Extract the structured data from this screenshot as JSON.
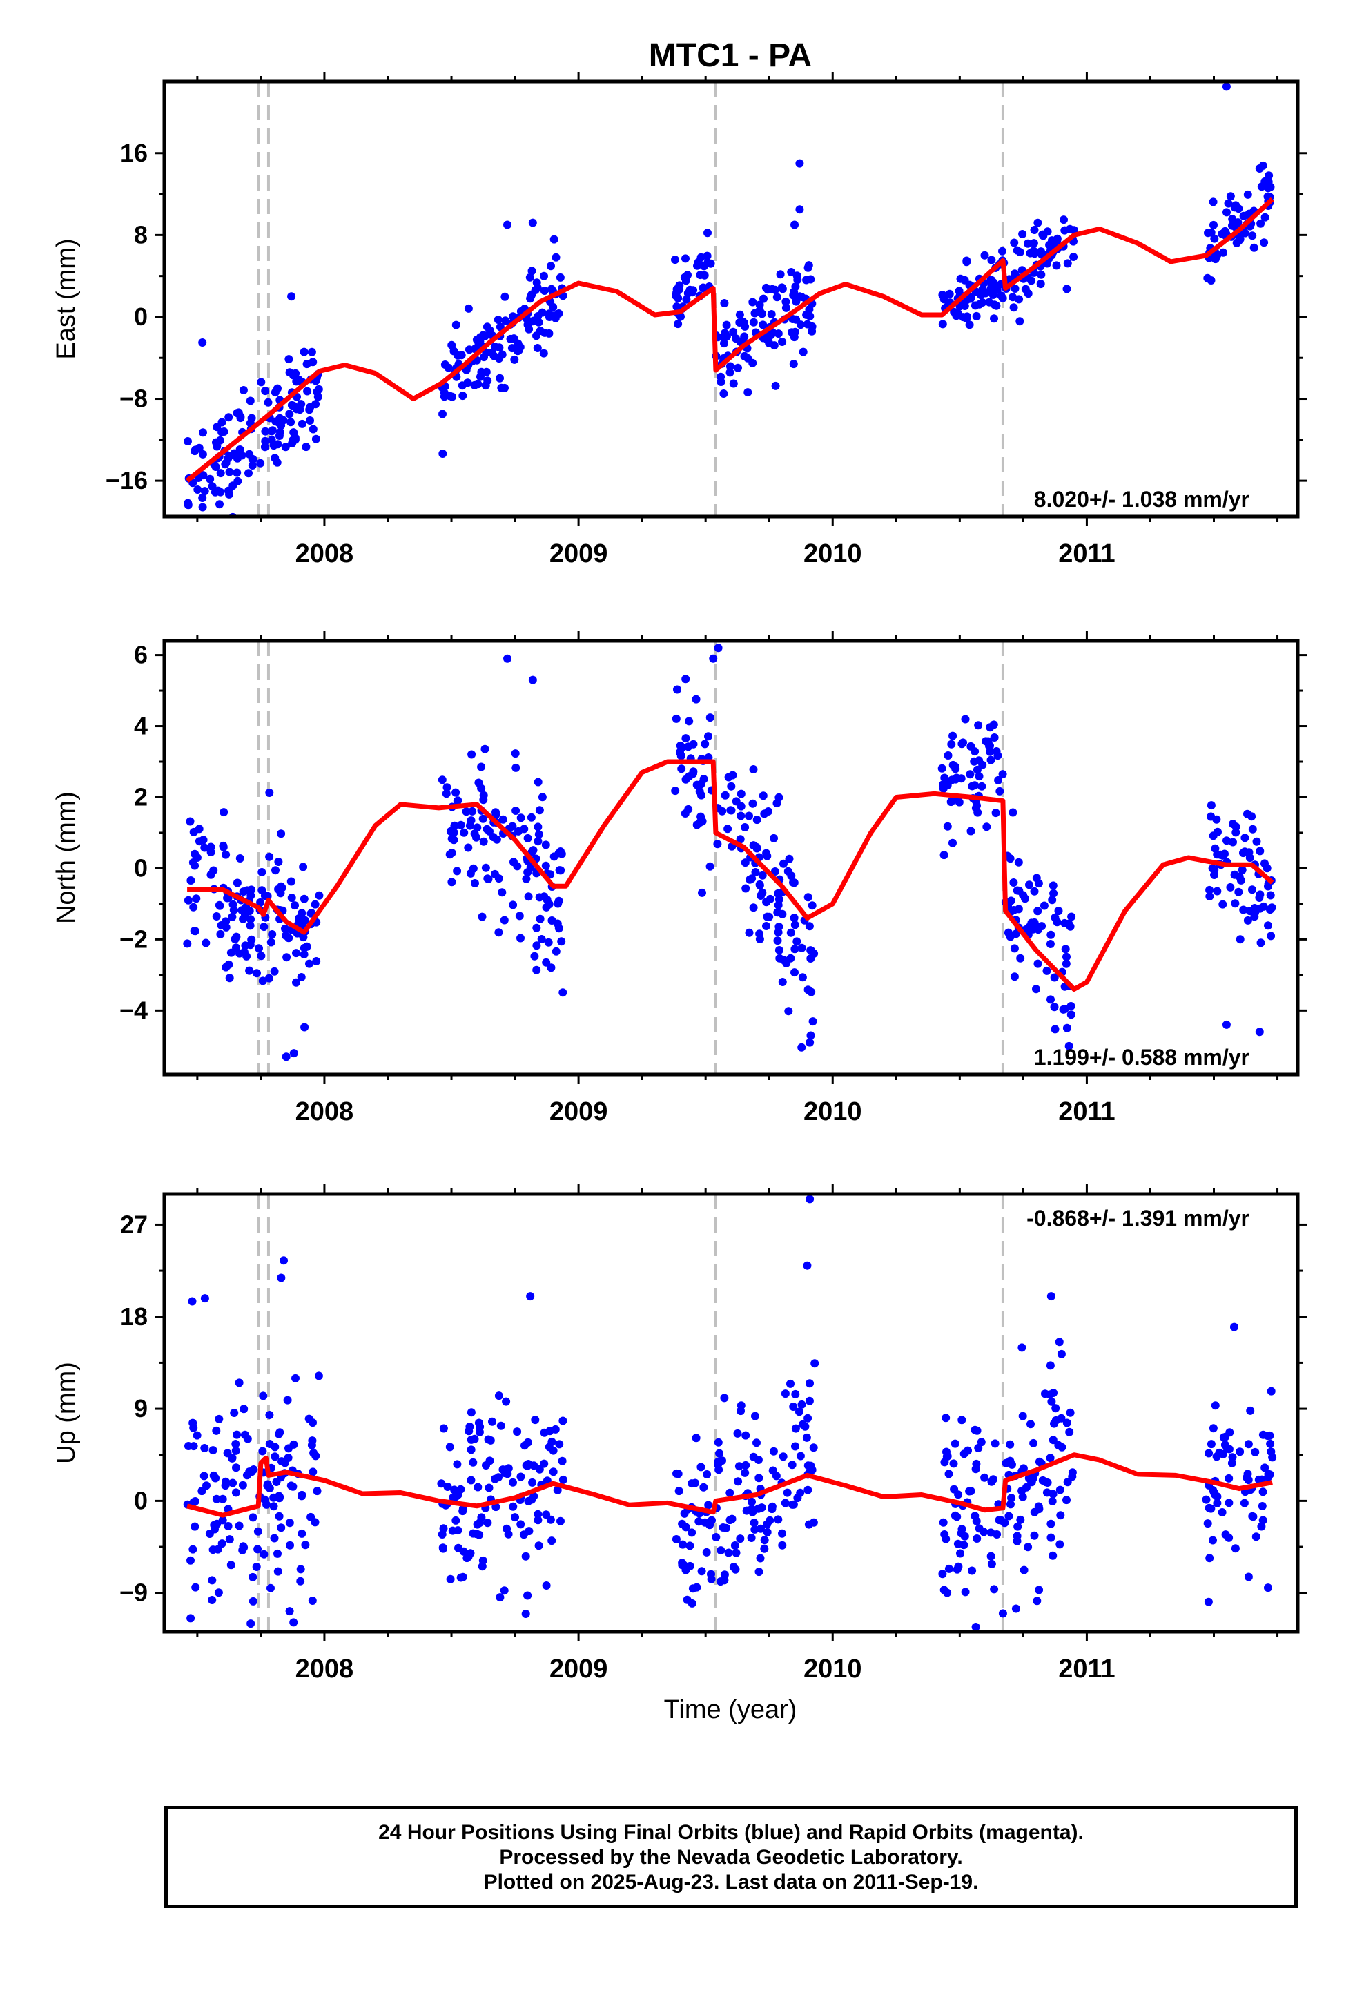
{
  "title": "MTC1 - PA",
  "footer": {
    "line1": "24 Hour Positions Using Final Orbits (blue) and Rapid Orbits (magenta).",
    "line2": "Processed by the Nevada Geodetic Laboratory.",
    "line3": "Plotted on 2025-Aug-23. Last data on 2011-Sep-19."
  },
  "colors": {
    "points": "#0000ff",
    "model": "#ff0000",
    "breaks": "#c0c0c0",
    "axes": "#000000"
  },
  "xaxis": {
    "label": "Time (year)",
    "range": [
      2007.37,
      2011.83
    ],
    "ticks": [
      2008,
      2009,
      2010,
      2011
    ]
  },
  "breaks": [
    2007.74,
    2007.78,
    2009.54,
    2010.67
  ],
  "chart_data": [
    {
      "type": "scatter",
      "name": "east",
      "ylabel": "East (mm)",
      "ylim": [
        -19.5,
        23
      ],
      "yticks": [
        16,
        8,
        0,
        -8,
        -16
      ],
      "ytick_labels": [
        "16",
        "8",
        "0",
        "−8",
        "−16"
      ],
      "rate": "8.020+/- 1.038 mm/yr",
      "rate_position": "bottom-right",
      "data_segments": [
        [
          2007.46,
          2007.98,
          -17.5,
          -6.0,
          2.5
        ],
        [
          2008.46,
          2008.94,
          -6.5,
          2.5,
          2.0
        ],
        [
          2009.38,
          2009.53,
          1.5,
          4.5,
          1.5
        ],
        [
          2009.54,
          2009.93,
          -4.0,
          2.0,
          2.2
        ],
        [
          2010.43,
          2010.95,
          0.0,
          7.5,
          1.7
        ],
        [
          2011.47,
          2011.73,
          6.0,
          12.0,
          1.5
        ]
      ],
      "outliers": [
        [
          2007.52,
          -2.5
        ],
        [
          2007.87,
          2.0
        ],
        [
          2008.72,
          9.0
        ],
        [
          2008.82,
          9.2
        ],
        [
          2009.87,
          15.0
        ],
        [
          2009.87,
          10.5
        ],
        [
          2009.85,
          9.0
        ],
        [
          2011.55,
          22.5
        ],
        [
          2011.68,
          14.5
        ]
      ],
      "model": [
        [
          2007.46,
          -16.0
        ],
        [
          2007.74,
          -10.4
        ],
        [
          2007.78,
          -9.6
        ],
        [
          2007.98,
          -5.3
        ],
        [
          2008.08,
          -4.7
        ],
        [
          2008.2,
          -5.5
        ],
        [
          2008.35,
          -8.0
        ],
        [
          2008.46,
          -6.5
        ],
        [
          2008.55,
          -4.7
        ],
        [
          2008.65,
          -2.5
        ],
        [
          2008.75,
          -0.5
        ],
        [
          2008.85,
          1.5
        ],
        [
          2009.0,
          3.3
        ],
        [
          2009.15,
          2.5
        ],
        [
          2009.3,
          0.2
        ],
        [
          2009.4,
          0.5
        ],
        [
          2009.53,
          2.8
        ],
        [
          2009.54,
          -5.2
        ],
        [
          2009.65,
          -2.8
        ],
        [
          2009.8,
          -0.3
        ],
        [
          2009.95,
          2.3
        ],
        [
          2010.05,
          3.2
        ],
        [
          2010.2,
          2.0
        ],
        [
          2010.35,
          0.2
        ],
        [
          2010.43,
          0.2
        ],
        [
          2010.55,
          2.8
        ],
        [
          2010.67,
          5.5
        ],
        [
          2010.68,
          2.8
        ],
        [
          2010.8,
          5.0
        ],
        [
          2010.95,
          8.0
        ],
        [
          2011.05,
          8.6
        ],
        [
          2011.2,
          7.2
        ],
        [
          2011.33,
          5.4
        ],
        [
          2011.47,
          6.0
        ],
        [
          2011.6,
          8.5
        ],
        [
          2011.73,
          11.5
        ]
      ]
    },
    {
      "type": "scatter",
      "name": "north",
      "ylabel": "North (mm)",
      "ylim": [
        -5.8,
        6.4
      ],
      "yticks": [
        6,
        4,
        2,
        0,
        -2,
        -4
      ],
      "ytick_labels": [
        "6",
        "4",
        "2",
        "0",
        "−2",
        "−4"
      ],
      "rate": "1.199+/- 0.588 mm/yr",
      "rate_position": "bottom-right",
      "data_segments": [
        [
          2007.46,
          2007.74,
          -0.3,
          -1.5,
          1.0
        ],
        [
          2007.74,
          2007.98,
          -1.2,
          -2.0,
          1.1
        ],
        [
          2008.46,
          2008.94,
          2.0,
          -1.0,
          1.2
        ],
        [
          2009.38,
          2009.53,
          3.3,
          2.5,
          1.2
        ],
        [
          2009.54,
          2009.93,
          2.0,
          -2.5,
          1.2
        ],
        [
          2010.43,
          2010.67,
          2.0,
          2.5,
          0.9
        ],
        [
          2010.68,
          2010.95,
          -0.5,
          -3.0,
          1.1
        ],
        [
          2011.47,
          2011.73,
          0.3,
          -1.0,
          0.9
        ]
      ],
      "outliers": [
        [
          2007.85,
          -5.3
        ],
        [
          2007.88,
          -5.2
        ],
        [
          2008.72,
          5.9
        ],
        [
          2008.82,
          5.3
        ],
        [
          2009.55,
          6.2
        ],
        [
          2009.53,
          5.9
        ],
        [
          2009.91,
          -4.9
        ],
        [
          2010.93,
          -5.0
        ],
        [
          2011.68,
          -4.6
        ],
        [
          2011.55,
          -4.4
        ]
      ],
      "model": [
        [
          2007.46,
          -0.6
        ],
        [
          2007.6,
          -0.6
        ],
        [
          2007.74,
          -1.1
        ],
        [
          2007.76,
          -1.3
        ],
        [
          2007.78,
          -0.9
        ],
        [
          2007.85,
          -1.5
        ],
        [
          2007.92,
          -1.8
        ],
        [
          2008.05,
          -0.5
        ],
        [
          2008.2,
          1.2
        ],
        [
          2008.3,
          1.8
        ],
        [
          2008.45,
          1.7
        ],
        [
          2008.6,
          1.8
        ],
        [
          2008.75,
          0.8
        ],
        [
          2008.9,
          -0.5
        ],
        [
          2008.95,
          -0.5
        ],
        [
          2009.1,
          1.2
        ],
        [
          2009.25,
          2.7
        ],
        [
          2009.35,
          3.0
        ],
        [
          2009.53,
          3.0
        ],
        [
          2009.54,
          1.0
        ],
        [
          2009.65,
          0.6
        ],
        [
          2009.8,
          -0.5
        ],
        [
          2009.9,
          -1.4
        ],
        [
          2010.0,
          -1.0
        ],
        [
          2010.15,
          1.0
        ],
        [
          2010.25,
          2.0
        ],
        [
          2010.4,
          2.1
        ],
        [
          2010.55,
          2.0
        ],
        [
          2010.67,
          1.9
        ],
        [
          2010.68,
          -1.2
        ],
        [
          2010.8,
          -2.3
        ],
        [
          2010.95,
          -3.4
        ],
        [
          2011.0,
          -3.2
        ],
        [
          2011.15,
          -1.2
        ],
        [
          2011.3,
          0.1
        ],
        [
          2011.4,
          0.3
        ],
        [
          2011.55,
          0.1
        ],
        [
          2011.65,
          0.1
        ],
        [
          2011.73,
          -0.4
        ]
      ]
    },
    {
      "type": "scatter",
      "name": "up",
      "ylabel": "Up (mm)",
      "ylim": [
        -12.8,
        30
      ],
      "yticks": [
        27,
        18,
        9,
        0,
        -9
      ],
      "ytick_labels": [
        "27",
        "18",
        "9",
        "0",
        "−9"
      ],
      "rate": "-0.868+/- 1.391 mm/yr",
      "rate_position": "top-right",
      "data_segments": [
        [
          2007.46,
          2007.98,
          0.0,
          1.5,
          5.0
        ],
        [
          2008.46,
          2008.94,
          -1.0,
          1.5,
          4.5
        ],
        [
          2009.38,
          2009.53,
          -2.0,
          -1.0,
          4.0
        ],
        [
          2009.54,
          2009.93,
          -2.0,
          3.5,
          5.0
        ],
        [
          2010.43,
          2010.95,
          -1.0,
          3.0,
          5.0
        ],
        [
          2011.47,
          2011.73,
          1.0,
          2.0,
          4.5
        ]
      ],
      "outliers": [
        [
          2007.48,
          19.5
        ],
        [
          2007.53,
          19.8
        ],
        [
          2007.84,
          23.5
        ],
        [
          2007.83,
          21.8
        ],
        [
          2007.71,
          -12.0
        ],
        [
          2008.81,
          20.0
        ],
        [
          2009.91,
          29.5
        ],
        [
          2009.9,
          23.0
        ],
        [
          2010.67,
          -11.0
        ],
        [
          2010.86,
          20.0
        ],
        [
          2011.58,
          17.0
        ]
      ],
      "model": [
        [
          2007.46,
          -0.5
        ],
        [
          2007.6,
          -1.4
        ],
        [
          2007.74,
          -0.5
        ],
        [
          2007.75,
          3.7
        ],
        [
          2007.77,
          4.2
        ],
        [
          2007.78,
          2.5
        ],
        [
          2007.85,
          2.8
        ],
        [
          2008.0,
          2.0
        ],
        [
          2008.15,
          0.7
        ],
        [
          2008.3,
          0.8
        ],
        [
          2008.45,
          0.0
        ],
        [
          2008.6,
          -0.5
        ],
        [
          2008.75,
          0.3
        ],
        [
          2008.9,
          1.7
        ],
        [
          2009.05,
          0.7
        ],
        [
          2009.2,
          -0.4
        ],
        [
          2009.35,
          -0.2
        ],
        [
          2009.53,
          -1.1
        ],
        [
          2009.54,
          0.0
        ],
        [
          2009.7,
          0.6
        ],
        [
          2009.9,
          2.5
        ],
        [
          2010.05,
          1.5
        ],
        [
          2010.2,
          0.4
        ],
        [
          2010.35,
          0.6
        ],
        [
          2010.5,
          -0.2
        ],
        [
          2010.6,
          -0.9
        ],
        [
          2010.67,
          -0.7
        ],
        [
          2010.68,
          2.0
        ],
        [
          2010.8,
          3.0
        ],
        [
          2010.95,
          4.5
        ],
        [
          2011.05,
          4.0
        ],
        [
          2011.2,
          2.6
        ],
        [
          2011.35,
          2.5
        ],
        [
          2011.5,
          1.8
        ],
        [
          2011.6,
          1.2
        ],
        [
          2011.73,
          1.8
        ]
      ]
    }
  ]
}
